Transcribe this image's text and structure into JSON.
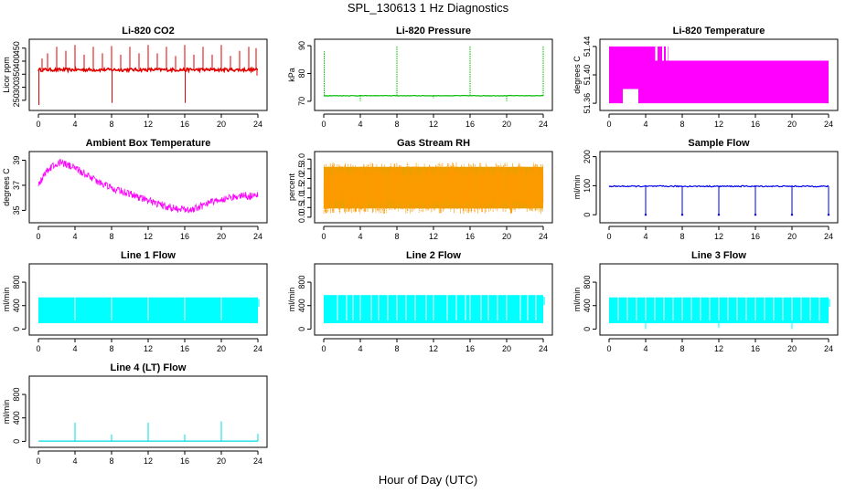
{
  "title": "SPL_130613  1 Hz Diagnostics",
  "xlabel": "Hour of Day (UTC)",
  "chart_data": [
    {
      "type": "line",
      "title": "Li-820 CO2",
      "ylabel": "Licor ppm",
      "xlim": [
        0,
        24
      ],
      "ylim": [
        225,
        470
      ],
      "xticks": [
        "0",
        "4",
        "8",
        "12",
        "16",
        "20",
        "24"
      ],
      "yticks": [
        "250",
        "300",
        "350",
        "400",
        "450"
      ],
      "ytick_values": [
        250,
        300,
        350,
        400,
        450
      ],
      "color": "#e00000",
      "baseline": 367,
      "noise": 6,
      "spikes": [
        {
          "x": 0.05,
          "y": 232
        },
        {
          "x": 0.4,
          "y": 410
        },
        {
          "x": 1.0,
          "y": 430
        },
        {
          "x": 2.0,
          "y": 455
        },
        {
          "x": 3.0,
          "y": 440
        },
        {
          "x": 4.0,
          "y": 462
        },
        {
          "x": 5.0,
          "y": 425
        },
        {
          "x": 6.0,
          "y": 455
        },
        {
          "x": 7.0,
          "y": 430
        },
        {
          "x": 8.0,
          "y": 458
        },
        {
          "x": 8.05,
          "y": 240
        },
        {
          "x": 9.0,
          "y": 425
        },
        {
          "x": 10.0,
          "y": 455
        },
        {
          "x": 11.0,
          "y": 430
        },
        {
          "x": 12.0,
          "y": 462
        },
        {
          "x": 13.0,
          "y": 430
        },
        {
          "x": 14.0,
          "y": 455
        },
        {
          "x": 15.0,
          "y": 420
        },
        {
          "x": 16.0,
          "y": 462
        },
        {
          "x": 16.05,
          "y": 240
        },
        {
          "x": 17.0,
          "y": 425
        },
        {
          "x": 18.0,
          "y": 455
        },
        {
          "x": 19.0,
          "y": 425
        },
        {
          "x": 20.0,
          "y": 462
        },
        {
          "x": 21.0,
          "y": 420
        },
        {
          "x": 22.0,
          "y": 440
        },
        {
          "x": 23.0,
          "y": 455
        },
        {
          "x": 23.8,
          "y": 450
        },
        {
          "x": 23.9,
          "y": 345
        }
      ]
    },
    {
      "type": "line",
      "title": "Li-820 Pressure",
      "ylabel": "kPa",
      "xlim": [
        0,
        24
      ],
      "ylim": [
        68,
        91
      ],
      "xticks": [
        "0",
        "4",
        "8",
        "12",
        "16",
        "20",
        "24"
      ],
      "yticks": [
        "70",
        "80",
        "90"
      ],
      "ytick_values": [
        70,
        80,
        90
      ],
      "color": "#00bb00",
      "baseline": 72,
      "noise": 0.1,
      "spikes": [
        {
          "x": 0.05,
          "y": 88
        },
        {
          "x": 4.0,
          "y": 70
        },
        {
          "x": 8.0,
          "y": 90
        },
        {
          "x": 12.0,
          "y": 71
        },
        {
          "x": 16.0,
          "y": 90
        },
        {
          "x": 20.0,
          "y": 70
        },
        {
          "x": 24.0,
          "y": 90
        }
      ]
    },
    {
      "type": "area",
      "title": "Li-820 Temperature",
      "ylabel": "degrees C",
      "xlim": [
        0,
        24
      ],
      "ylim": [
        51.355,
        51.445
      ],
      "xticks": [
        "0",
        "4",
        "8",
        "12",
        "16",
        "20",
        "24"
      ],
      "yticks": [
        "51.36",
        "51.40",
        "51.44"
      ],
      "ytick_values": [
        51.36,
        51.4,
        51.44
      ],
      "color": "#ff00ff",
      "segments": [
        {
          "x0": 0.0,
          "x1": 1.5,
          "ymin": 51.36,
          "ymax": 51.44
        },
        {
          "x0": 1.5,
          "x1": 3.2,
          "ymin": 51.38,
          "ymax": 51.44
        },
        {
          "x0": 3.2,
          "x1": 5.0,
          "ymin": 51.36,
          "ymax": 51.44
        },
        {
          "x0": 5.0,
          "x1": 6.5,
          "ymin": 51.36,
          "ymax": 51.44
        },
        {
          "x0": 6.5,
          "x1": 24.0,
          "ymin": 51.36,
          "ymax": 51.42
        }
      ],
      "gaps": [
        {
          "x0": 5.05,
          "x1": 5.3
        },
        {
          "x0": 5.8,
          "x1": 6.0
        },
        {
          "x0": 6.2,
          "x1": 6.45
        }
      ]
    },
    {
      "type": "line",
      "title": "Ambient Box Temperature",
      "ylabel": "degrees C",
      "xlim": [
        0,
        24
      ],
      "ylim": [
        34.3,
        39.4
      ],
      "xticks": [
        "0",
        "4",
        "8",
        "12",
        "16",
        "20",
        "24"
      ],
      "yticks": [
        "35",
        "37",
        "39"
      ],
      "ytick_values": [
        35,
        37,
        39
      ],
      "color": "#ff00ff",
      "trend_x": [
        0,
        1,
        2,
        2.5,
        3,
        4,
        6,
        8,
        10,
        12,
        14,
        16,
        17,
        18,
        20,
        22,
        23.5,
        24
      ],
      "trend_y": [
        37.0,
        38.2,
        38.75,
        38.8,
        38.7,
        38.4,
        37.5,
        36.8,
        36.3,
        35.8,
        35.3,
        35.0,
        35.1,
        35.4,
        35.9,
        36.2,
        36.1,
        36.2
      ],
      "band": 0.55
    },
    {
      "type": "line",
      "title": "Gas Stream RH",
      "ylabel": "percent",
      "xlim": [
        0,
        24
      ],
      "ylim": [
        -0.1,
        3.2
      ],
      "xticks": [
        "0",
        "4",
        "8",
        "12",
        "16",
        "20",
        "24"
      ],
      "yticks": [
        "0.0",
        "0.5",
        "1.0",
        "1.5",
        "2.0",
        "2.5",
        "3.0"
      ],
      "ytick_values": [
        0,
        0.5,
        1,
        1.5,
        2,
        2.5,
        3
      ],
      "color": "#ff9900",
      "secondary_color": "#e8a000",
      "center": 1.5,
      "band": 1.4
    },
    {
      "type": "line",
      "title": "Sample Flow",
      "ylabel": "ml/min",
      "xlim": [
        0,
        24
      ],
      "ylim": [
        -15,
        205
      ],
      "xticks": [
        "0",
        "4",
        "8",
        "12",
        "16",
        "20",
        "24"
      ],
      "yticks": [
        "0",
        "100",
        "200"
      ],
      "ytick_values": [
        0,
        100,
        200
      ],
      "color": "#0000ee",
      "baseline": 98,
      "noise": 2,
      "dips": [
        {
          "x": 4.0,
          "y": 0
        },
        {
          "x": 8.0,
          "y": 0
        },
        {
          "x": 12.0,
          "y": 0
        },
        {
          "x": 16.0,
          "y": 0
        },
        {
          "x": 20.0,
          "y": 0
        },
        {
          "x": 24.0,
          "y": 0
        }
      ]
    },
    {
      "type": "area",
      "title": "Line 1 Flow",
      "ylabel": "ml/min",
      "xlim": [
        0,
        24
      ],
      "ylim": [
        -40,
        1050
      ],
      "xticks": [
        "0",
        "4",
        "8",
        "12",
        "16",
        "20",
        "24"
      ],
      "yticks": [
        "0",
        "400",
        "800"
      ],
      "ytick_values": [
        0,
        400,
        800
      ],
      "color": "#00ffff",
      "low": 100,
      "high": 540,
      "gaps": [
        4.0,
        8.0,
        12.0,
        16.0,
        20.0
      ],
      "dips": []
    },
    {
      "type": "area",
      "title": "Line 2 Flow",
      "ylabel": "ml/min",
      "xlim": [
        0,
        24
      ],
      "ylim": [
        -40,
        1050
      ],
      "xticks": [
        "0",
        "4",
        "8",
        "12",
        "16",
        "20",
        "24"
      ],
      "yticks": [
        "0",
        "400",
        "800"
      ],
      "ytick_values": [
        0,
        400,
        800
      ],
      "color": "#00ffff",
      "low": 100,
      "high": 580,
      "gaps": [
        1.5,
        2.5,
        3.2,
        4.0,
        5.2,
        6.0,
        7.0,
        8.0,
        9.0,
        10.0,
        11.2,
        12.0,
        13.5,
        14.5,
        15.5,
        16.0,
        17.2,
        18.0,
        19.0,
        20.0,
        21.5,
        22.3,
        23.2
      ],
      "dips": []
    },
    {
      "type": "area",
      "title": "Line 3 Flow",
      "ylabel": "ml/min",
      "xlim": [
        0,
        24
      ],
      "ylim": [
        -40,
        1050
      ],
      "xticks": [
        "0",
        "4",
        "8",
        "12",
        "16",
        "20",
        "24"
      ],
      "yticks": [
        "0",
        "400",
        "800"
      ],
      "ytick_values": [
        0,
        400,
        800
      ],
      "color": "#00ffff",
      "low": 100,
      "high": 540,
      "gaps": [
        1.0,
        2.0,
        3.0,
        4.0,
        5.0,
        6.0,
        7.0,
        8.0,
        9.0,
        10.0,
        11.0,
        12.0,
        13.0,
        14.0,
        15.0,
        16.0,
        17.0,
        18.0,
        19.0,
        20.0,
        21.0,
        22.0,
        23.0
      ],
      "dips": [
        {
          "x": 4.0,
          "y": 0
        },
        {
          "x": 12.0,
          "y": 20
        },
        {
          "x": 20.0,
          "y": 0
        }
      ]
    },
    {
      "type": "line",
      "title": "Line 4 (LT) Flow",
      "ylabel": "ml/min",
      "xlim": [
        0,
        24
      ],
      "ylim": [
        -40,
        1050
      ],
      "xticks": [
        "0",
        "4",
        "8",
        "12",
        "16",
        "20",
        "24"
      ],
      "yticks": [
        "0",
        "400",
        "800"
      ],
      "ytick_values": [
        0,
        400,
        800
      ],
      "color": "#00dddd",
      "baseline": 5,
      "noise": 0,
      "spikes": [
        {
          "x": 4.0,
          "y": 320
        },
        {
          "x": 8.0,
          "y": 120
        },
        {
          "x": 12.0,
          "y": 320
        },
        {
          "x": 16.0,
          "y": 120
        },
        {
          "x": 20.0,
          "y": 340
        },
        {
          "x": 24.0,
          "y": 130
        }
      ]
    }
  ]
}
